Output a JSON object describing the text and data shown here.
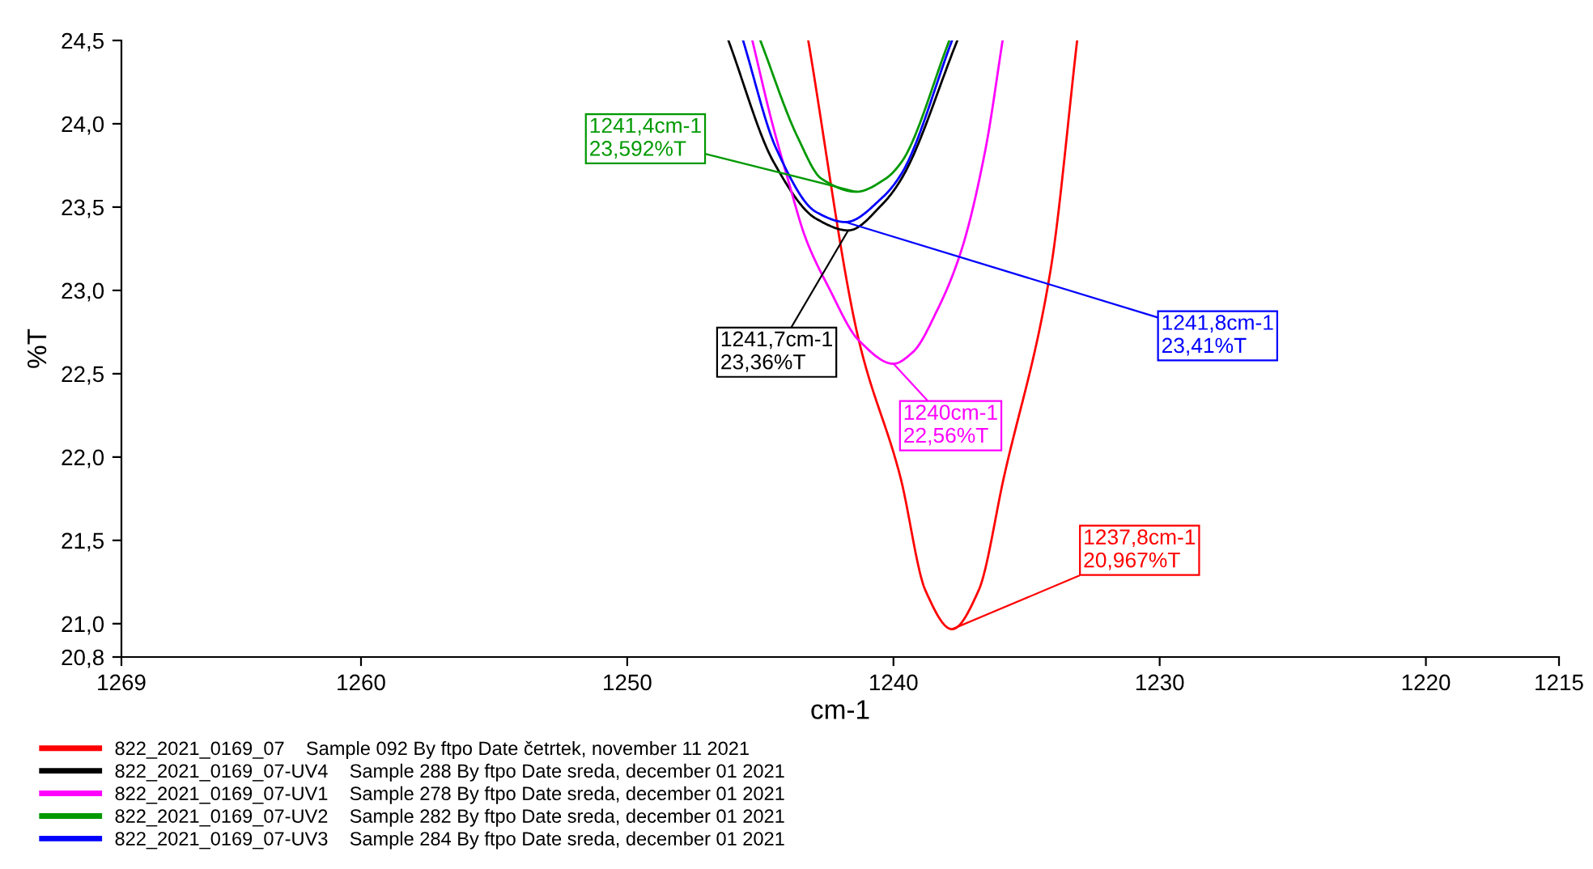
{
  "chart_data": {
    "type": "line",
    "xlabel": "cm-1",
    "ylabel": "%T",
    "xlim": [
      1269,
      1215
    ],
    "xticks": [
      1269,
      1260,
      1250,
      1240,
      1230,
      1220,
      1215
    ],
    "ylim": [
      20.8,
      24.5
    ],
    "yticks": [
      {
        "value": 20.8,
        "label": "20,8"
      },
      {
        "value": 21.0,
        "label": "21,0"
      },
      {
        "value": 21.5,
        "label": "21,5"
      },
      {
        "value": 22.0,
        "label": "22,0"
      },
      {
        "value": 22.5,
        "label": "22,5"
      },
      {
        "value": 23.0,
        "label": "23,0"
      },
      {
        "value": 23.5,
        "label": "23,5"
      },
      {
        "value": 24.0,
        "label": "24,0"
      },
      {
        "value": 24.5,
        "label": "24,5"
      }
    ],
    "grid": false,
    "legend": "bottom",
    "marker": "none",
    "line_style": "solid",
    "series": [
      {
        "name": "822_2021_0169_07    Sample 092 By ftpo Date četrtek, november 11 2021",
        "color": "#ff0000",
        "x": [
          1243.2,
          1241.3,
          1239.74,
          1238.8,
          1237.8,
          1236.8,
          1235.85,
          1234.1,
          1233.1
        ],
        "values": [
          24.5,
          22.7,
          21.88,
          21.2,
          20.967,
          21.2,
          21.88,
          23.12,
          24.5
        ]
      },
      {
        "name": "822_2021_0169_07-UV4    Sample 288 By ftpo Date sreda, december 01 2021",
        "color": "#000000",
        "x": [
          1246.2,
          1244.5,
          1242.9,
          1241.7,
          1240.4,
          1239.7,
          1237.6
        ],
        "values": [
          24.5,
          23.77,
          23.43,
          23.36,
          23.52,
          23.67,
          24.5
        ]
      },
      {
        "name": "822_2021_0169_07-UV1    Sample 278 By ftpo Date sreda, december 01 2021",
        "color": "#ff00ff",
        "x": [
          1245.3,
          1244.58,
          1243.97,
          1243.29,
          1242.44,
          1241.3,
          1240.0,
          1239.27,
          1238.36,
          1237.45,
          1236.54,
          1235.9
        ],
        "values": [
          24.5,
          24.02,
          23.67,
          23.31,
          23.02,
          22.7,
          22.56,
          22.63,
          22.88,
          23.24,
          23.85,
          24.5
        ]
      },
      {
        "name": "822_2021_0169_07-UV2    Sample 282 By ftpo Date sreda, december 01 2021",
        "color": "#009900",
        "x": [
          1245.0,
          1243.6,
          1242.7,
          1241.4,
          1240.3,
          1239.7,
          1237.9
        ],
        "values": [
          24.5,
          23.92,
          23.67,
          23.592,
          23.67,
          23.77,
          24.5
        ]
      },
      {
        "name": "822_2021_0169_07-UV3    Sample 284 By ftpo Date sreda, december 01 2021",
        "color": "#0000ff",
        "x": [
          1245.65,
          1244.4,
          1242.9,
          1241.8,
          1240.4,
          1239.7,
          1237.8
        ],
        "values": [
          24.5,
          23.85,
          23.47,
          23.41,
          23.56,
          23.7,
          24.5
        ]
      }
    ],
    "annotations": [
      {
        "text": "1237,8cm-1\n20,967%T",
        "x": 1237.8,
        "y": 20.967
      },
      {
        "text": "1241,7cm-1\n23,36%T",
        "x": 1241.7,
        "y": 23.36
      },
      {
        "text": "1240cm-1\n22,56%T",
        "x": 1240.0,
        "y": 22.56
      },
      {
        "text": "1241,4cm-1\n23,592%T",
        "x": 1241.4,
        "y": 23.592
      },
      {
        "text": "1241,8cm-1\n23,41%T",
        "x": 1241.8,
        "y": 23.41
      }
    ]
  }
}
